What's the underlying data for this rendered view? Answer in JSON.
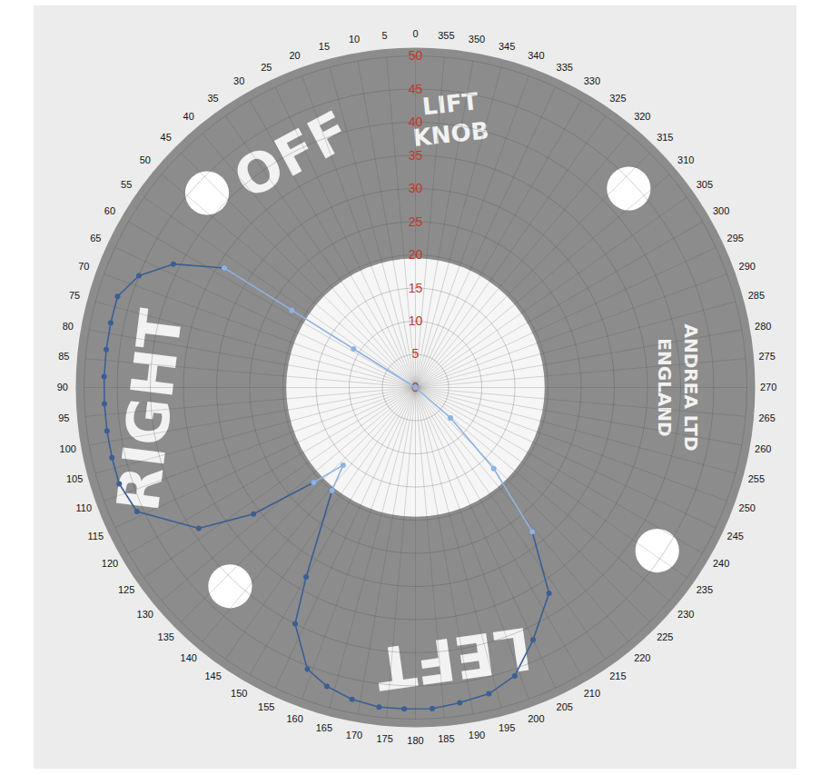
{
  "chart_data": {
    "type": "polar_line",
    "rlim": [
      0,
      50
    ],
    "rticks": [
      0,
      5,
      10,
      15,
      20,
      25,
      30,
      35,
      40,
      45,
      50
    ],
    "thetaticks": [
      0,
      5,
      10,
      15,
      20,
      25,
      30,
      35,
      40,
      45,
      50,
      55,
      60,
      65,
      70,
      75,
      80,
      85,
      90,
      95,
      100,
      105,
      110,
      115,
      120,
      125,
      130,
      135,
      140,
      145,
      150,
      155,
      160,
      165,
      170,
      175,
      180,
      185,
      190,
      195,
      200,
      205,
      210,
      215,
      220,
      225,
      230,
      235,
      240,
      245,
      250,
      255,
      260,
      265,
      270,
      275,
      280,
      285,
      290,
      295,
      300,
      305,
      310,
      315,
      320,
      325,
      330,
      335,
      340,
      345,
      350,
      355
    ],
    "grid": true,
    "annotations": [
      "RIGHT",
      "OFF",
      "LIFT",
      "KNOB",
      "LEFT",
      "ANDREA LTD",
      "ENGLAND"
    ],
    "series": [
      {
        "color": "#3b5e94",
        "marker": "circle",
        "line_style": "solid",
        "theta": [
          58,
          63,
          68,
          73,
          78,
          83,
          88,
          93,
          98,
          103,
          108,
          114,
          123,
          128,
          133,
          null,
          141,
          150,
          153,
          159,
          163.5,
          168.5,
          173.5,
          178,
          183,
          188,
          193.5,
          199,
          205,
          213,
          219
        ],
        "r": [
          34,
          41,
          45,
          47,
          47,
          47,
          47,
          47,
          47,
          47,
          47,
          46,
          39,
          31,
          21,
          null,
          20,
          33,
          40,
          45.5,
          47,
          48,
          48.5,
          48.5,
          48.5,
          48,
          47.5,
          46,
          42,
          37,
          28
        ]
      },
      {
        "color": "#8db4e2",
        "marker": "circle",
        "line_style": "solid",
        "theta": [
          0,
          58,
          58,
          58,
          null,
          133,
          137,
          141,
          null,
          219,
          224,
          229,
          0
        ],
        "r": [
          0,
          11,
          22,
          34,
          null,
          21,
          16,
          20,
          null,
          28,
          17,
          7,
          0
        ]
      }
    ]
  }
}
